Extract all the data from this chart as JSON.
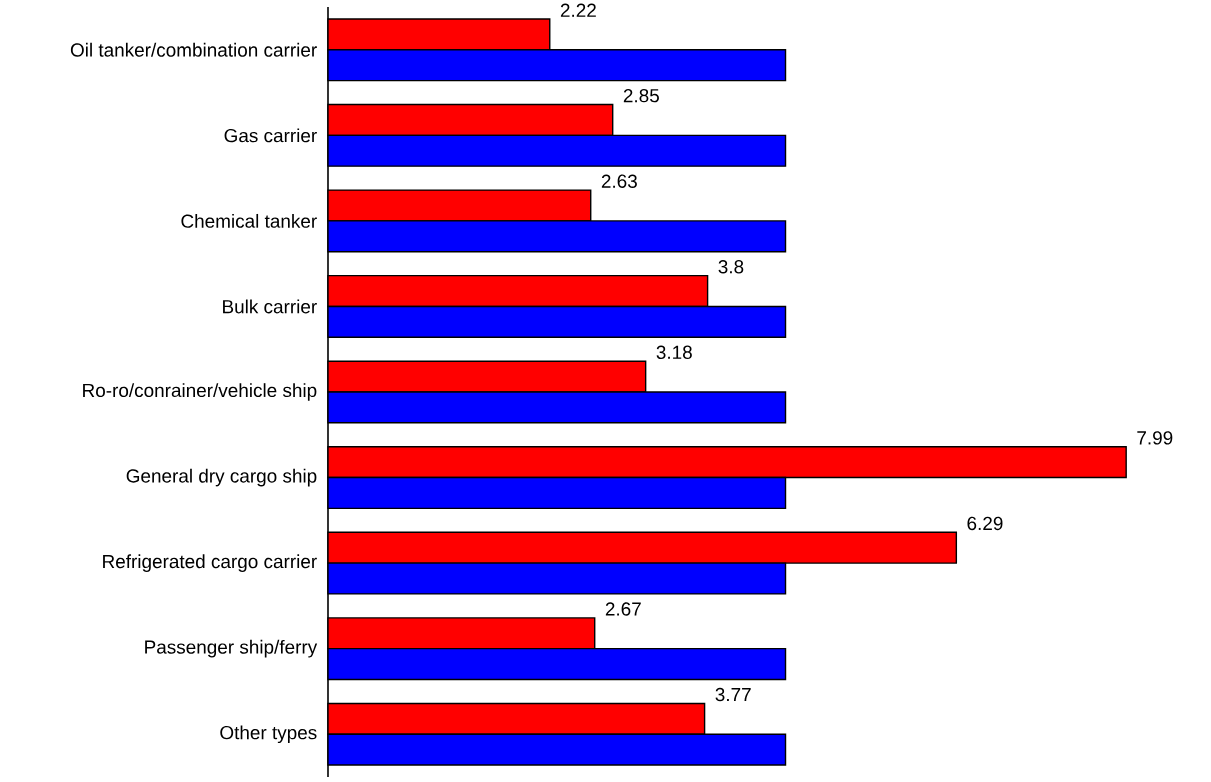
{
  "chart_data": {
    "type": "bar",
    "orientation": "horizontal",
    "categories": [
      "Oil tanker/combination carrier",
      "Gas carrier",
      "Chemical tanker",
      "Bulk carrier",
      "Ro-ro/conrainer/vehicle ship",
      "General dry cargo ship",
      "Refrigerated cargo carrier",
      "Passenger ship/ferry",
      "Other types"
    ],
    "series": [
      {
        "color": "#ff0000",
        "values": [
          2.22,
          2.85,
          2.63,
          3.8,
          3.18,
          7.99,
          6.29,
          2.67,
          3.77
        ],
        "value_labels": [
          "2.22",
          "2.85",
          "2.63",
          "3.8",
          "3.18",
          "7.99",
          "6.29",
          "2.67",
          "3.77"
        ]
      },
      {
        "color": "#0000ff",
        "values": [
          4.58,
          4.58,
          4.58,
          4.58,
          4.58,
          4.58,
          4.58,
          4.58,
          4.58
        ]
      }
    ],
    "data_labels": false
  }
}
